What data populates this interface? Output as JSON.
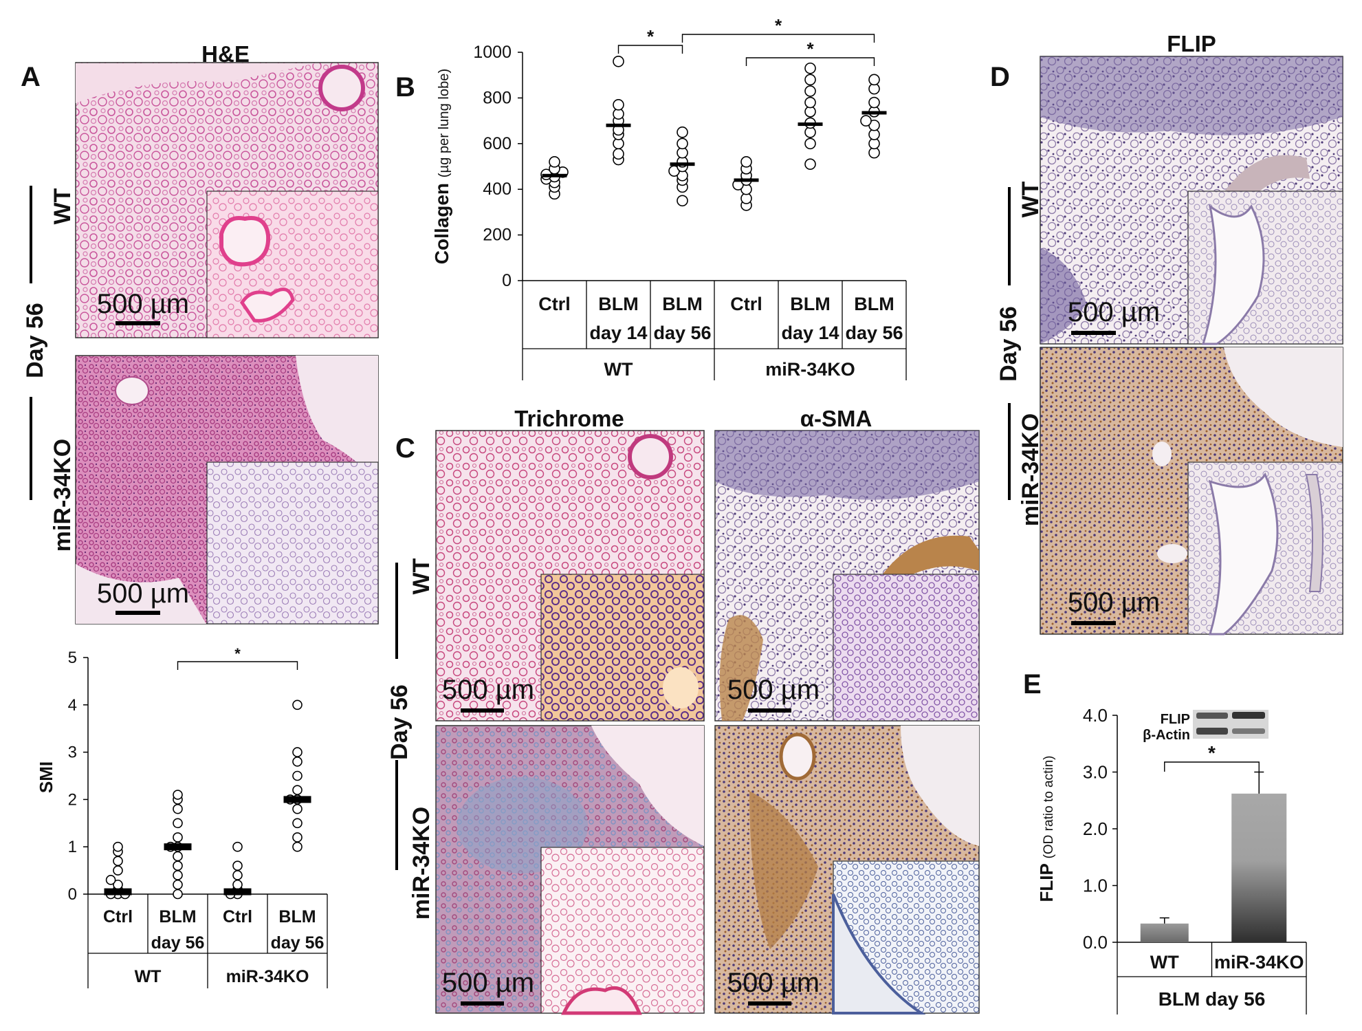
{
  "panel_letters": {
    "a": "A",
    "b": "B",
    "c": "C",
    "d": "D",
    "e": "E"
  },
  "panel_a": {
    "title": "H&E",
    "row_labels": {
      "wt": "WT",
      "ko": "miR-34KO",
      "day": "Day 56"
    },
    "scale_bar_label": "500 µm"
  },
  "panel_c": {
    "titles": {
      "trichrome": "Trichrome",
      "sma": "α-SMA"
    },
    "row_labels": {
      "wt": "WT",
      "ko": "miR-34KO",
      "day": "Day 56"
    },
    "scale_bar_label": "500 µm"
  },
  "panel_d": {
    "title": "FLIP",
    "row_labels": {
      "wt": "WT",
      "ko": "miR-34KO",
      "day": "Day 56"
    },
    "scale_bar_label": "500 µm"
  },
  "panel_e": {
    "blot_labels": {
      "flip": "FLIP",
      "actin": "β-Actin"
    }
  },
  "colors": {
    "he_bg": "#f3dbe6",
    "he_tissue": "#c9569c",
    "he_inset": "#f7d4e2",
    "trichrome_bg": "#f4e2ea",
    "trichrome_tissue": "#c7467d",
    "trichrome_blue": "#8aa3c9",
    "ihc_bg": "#f2ecee",
    "ihc_nuclei": "#5e4d88",
    "ihc_brown": "#b37e45",
    "bar_light": "#a8a8a8",
    "bar_dark": "#303030"
  },
  "chart_data": [
    {
      "id": "collagen",
      "type": "scatter",
      "title": "",
      "ylabel": "Collagen",
      "ylabel_unit": "(µg per lung lobe)",
      "ylim": [
        0,
        1000
      ],
      "yticks": [
        0,
        200,
        400,
        600,
        800,
        1000
      ],
      "groups": [
        {
          "line1": "Ctrl",
          "line2": "",
          "genotype": "WT",
          "mean": 460,
          "points": [
            380,
            410,
            430,
            445,
            455,
            465,
            475,
            490,
            520
          ]
        },
        {
          "line1": "BLM",
          "line2": "day 14",
          "genotype": "WT",
          "mean": 680,
          "points": [
            530,
            555,
            600,
            640,
            660,
            700,
            730,
            770,
            960
          ]
        },
        {
          "line1": "BLM",
          "line2": "day 56",
          "genotype": "WT",
          "mean": 510,
          "points": [
            350,
            410,
            440,
            460,
            480,
            500,
            520,
            560,
            600,
            650
          ]
        },
        {
          "line1": "Ctrl",
          "line2": "",
          "genotype": "miR-34KO",
          "mean": 440,
          "points": [
            330,
            360,
            400,
            420,
            440,
            460,
            490,
            520
          ]
        },
        {
          "line1": "BLM",
          "line2": "day 14",
          "genotype": "miR-34KO",
          "mean": 685,
          "points": [
            510,
            600,
            650,
            690,
            740,
            780,
            830,
            880,
            930
          ]
        },
        {
          "line1": "BLM",
          "line2": "day 56",
          "genotype": "miR-34KO",
          "mean": 735,
          "points": [
            560,
            600,
            640,
            680,
            700,
            740,
            780,
            840,
            880
          ]
        }
      ],
      "genotype_labels": [
        "WT",
        "miR-34KO"
      ],
      "significance": [
        {
          "from": 1,
          "to": 2,
          "label": "*"
        },
        {
          "from": 2,
          "to": 5,
          "label": "*"
        },
        {
          "from": 3,
          "to": 5,
          "label": "*"
        }
      ]
    },
    {
      "id": "smi",
      "type": "scatter",
      "title": "",
      "ylabel": "SMI",
      "ylim": [
        0,
        5
      ],
      "yticks": [
        0,
        1,
        2,
        3,
        4,
        5
      ],
      "groups": [
        {
          "line1": "Ctrl",
          "line2": "",
          "genotype": "WT",
          "mean": 0.05,
          "points": [
            0,
            0,
            0,
            0.1,
            0.2,
            0.3,
            0.5,
            0.7,
            0.9,
            1.0
          ]
        },
        {
          "line1": "BLM",
          "line2": "day 56",
          "genotype": "WT",
          "mean": 1.0,
          "points": [
            0,
            0.2,
            0.4,
            0.6,
            0.8,
            1.0,
            1.0,
            1.2,
            1.5,
            1.8,
            2.0,
            2.1
          ]
        },
        {
          "line1": "Ctrl",
          "line2": "",
          "genotype": "miR-34KO",
          "mean": 0.05,
          "points": [
            0,
            0,
            0.1,
            0.2,
            0.4,
            0.6,
            1.0
          ]
        },
        {
          "line1": "BLM",
          "line2": "day 56",
          "genotype": "miR-34KO",
          "mean": 2.0,
          "points": [
            1.0,
            1.2,
            1.5,
            1.8,
            2.0,
            2.0,
            2.2,
            2.5,
            2.8,
            3.0,
            4.0
          ]
        }
      ],
      "genotype_labels": [
        "WT",
        "miR-34KO"
      ],
      "significance": [
        {
          "from": 1,
          "to": 3,
          "label": "*"
        }
      ]
    },
    {
      "id": "flip",
      "type": "bar",
      "title": "",
      "ylabel": "FLIP",
      "ylabel_unit": "(OD ratio to actin)",
      "xlabel": "BLM day 56",
      "ylim": [
        0,
        4.0
      ],
      "yticks": [
        "0.0",
        "1.0",
        "2.0",
        "3.0",
        "4.0"
      ],
      "categories": [
        "WT",
        "miR-34KO"
      ],
      "values": [
        0.33,
        2.62
      ],
      "errors": [
        0.1,
        0.38
      ],
      "significance": [
        {
          "from": 0,
          "to": 1,
          "label": "*"
        }
      ]
    }
  ]
}
